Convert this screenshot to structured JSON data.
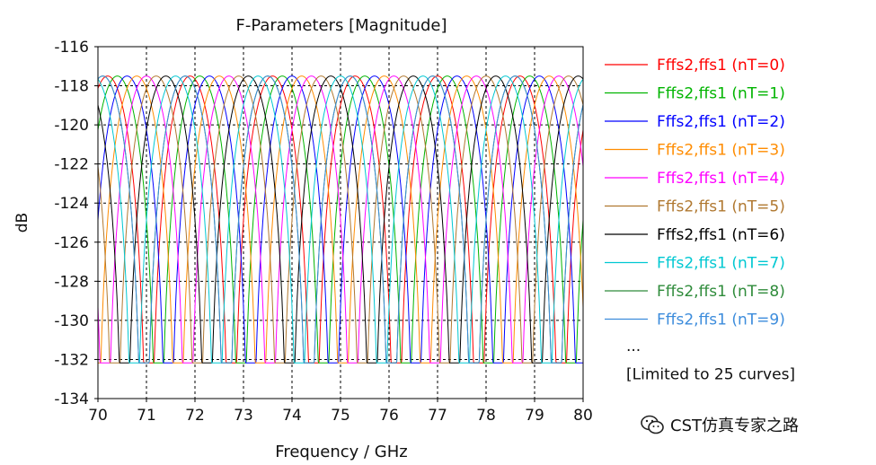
{
  "chart_data": {
    "type": "line",
    "title": "F-Parameters [Magnitude]",
    "xlabel": "Frequency / GHz",
    "ylabel": "dB",
    "xlim": [
      70,
      80
    ],
    "ylim": [
      -134,
      -116
    ],
    "xticks": [
      "70",
      "71",
      "72",
      "73",
      "74",
      "75",
      "76",
      "77",
      "78",
      "79",
      "80"
    ],
    "yticks": [
      "-116",
      "-118",
      "-120",
      "-122",
      "-124",
      "-126",
      "-128",
      "-130",
      "-132",
      "-134"
    ],
    "grid": true,
    "legend_position": "right",
    "curve_model": {
      "max_db": -117.5,
      "min_db": -132.3,
      "lobe_width_ghz": 1.0
    },
    "series": [
      {
        "name": "Fffs2,ffs1 (nT=0)",
        "color": "#ff0000",
        "peaks": [
          70.2,
          71.9,
          73.6,
          75.3,
          77.0,
          78.7
        ]
      },
      {
        "name": "Fffs2,ffs1 (nT=1)",
        "color": "#00b400",
        "peaks": [
          70.4,
          72.1,
          73.8,
          75.5,
          77.2,
          78.9
        ]
      },
      {
        "name": "Fffs2,ffs1 (nT=2)",
        "color": "#0000ff",
        "peaks": [
          70.6,
          72.3,
          74.0,
          75.7,
          77.4,
          79.1
        ]
      },
      {
        "name": "Fffs2,ffs1 (nT=3)",
        "color": "#ff8c00",
        "peaks": [
          70.8,
          72.5,
          74.2,
          75.9,
          77.6,
          79.3
        ]
      },
      {
        "name": "Fffs2,ffs1 (nT=4)",
        "color": "#ff00ff",
        "peaks": [
          71.0,
          72.7,
          74.4,
          76.1,
          77.8,
          79.5
        ]
      },
      {
        "name": "Fffs2,ffs1 (nT=5)",
        "color": "#b07830",
        "peaks": [
          71.2,
          72.9,
          74.6,
          76.3,
          78.0,
          79.7
        ]
      },
      {
        "name": "Fffs2,ffs1 (nT=6)",
        "color": "#000000",
        "peaks": [
          71.4,
          73.1,
          74.8,
          76.5,
          78.2,
          79.9
        ]
      },
      {
        "name": "Fffs2,ffs1 (nT=7)",
        "color": "#00c8d2",
        "peaks": [
          71.6,
          73.3,
          75.0,
          76.7,
          78.4
        ]
      },
      {
        "name": "Fffs2,ffs1 (nT=8)",
        "color": "#2e8b3a",
        "peaks": [
          71.8,
          73.5,
          75.2,
          76.9,
          78.6
        ]
      },
      {
        "name": "Fffs2,ffs1 (nT=9)",
        "color": "#3c8cdc",
        "peaks": [
          70.1,
          71.5,
          73.2,
          74.9,
          76.6,
          78.3
        ]
      }
    ],
    "legend_more": "...",
    "legend_note": "[Limited to 25 curves]"
  },
  "watermark": {
    "text": "CST仿真专家之路",
    "icon": "wechat-icon"
  }
}
